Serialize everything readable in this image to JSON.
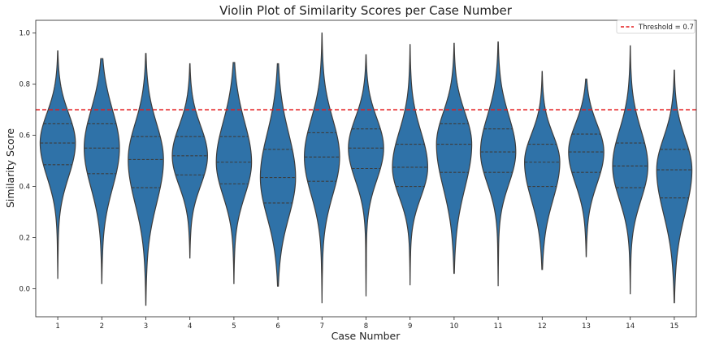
{
  "chart_data": {
    "type": "violin",
    "title": "Violin Plot of Similarity Scores per Case Number",
    "xlabel": "Case Number",
    "ylabel": "Similarity Score",
    "ylim": [
      -0.11,
      1.05
    ],
    "yticks": [
      "0.0",
      "0.2",
      "0.4",
      "0.6",
      "0.8",
      "1.0"
    ],
    "ytick_values": [
      0.0,
      0.2,
      0.4,
      0.6,
      0.8,
      1.0
    ],
    "categories": [
      "1",
      "2",
      "3",
      "4",
      "5",
      "6",
      "7",
      "8",
      "9",
      "10",
      "11",
      "12",
      "13",
      "14",
      "15"
    ],
    "grid": false,
    "violin_color": "#2f72a8",
    "edge_color": "#3d3d3d",
    "threshold": {
      "value": 0.7,
      "label": "Threshold = 0.7",
      "color": "#e41a1c",
      "style": "dashed"
    },
    "legend_position": "top-right",
    "series": [
      {
        "case": "1",
        "min": 0.04,
        "max": 0.93,
        "q1": 0.485,
        "median": 0.57,
        "q3": 0.645
      },
      {
        "case": "2",
        "min": 0.02,
        "max": 0.9,
        "q1": 0.45,
        "median": 0.55,
        "q3": 0.645
      },
      {
        "case": "3",
        "min": -0.065,
        "max": 0.92,
        "q1": 0.395,
        "median": 0.505,
        "q3": 0.595
      },
      {
        "case": "4",
        "min": 0.12,
        "max": 0.88,
        "q1": 0.445,
        "median": 0.52,
        "q3": 0.595
      },
      {
        "case": "5",
        "min": 0.02,
        "max": 0.885,
        "q1": 0.41,
        "median": 0.495,
        "q3": 0.595
      },
      {
        "case": "6",
        "min": 0.01,
        "max": 0.88,
        "q1": 0.335,
        "median": 0.435,
        "q3": 0.545
      },
      {
        "case": "7",
        "min": -0.055,
        "max": 1.0,
        "q1": 0.42,
        "median": 0.515,
        "q3": 0.61
      },
      {
        "case": "8",
        "min": -0.03,
        "max": 0.915,
        "q1": 0.47,
        "median": 0.55,
        "q3": 0.625
      },
      {
        "case": "9",
        "min": 0.015,
        "max": 0.955,
        "q1": 0.4,
        "median": 0.475,
        "q3": 0.565
      },
      {
        "case": "10",
        "min": 0.06,
        "max": 0.96,
        "q1": 0.455,
        "median": 0.565,
        "q3": 0.645
      },
      {
        "case": "11",
        "min": 0.01,
        "max": 0.965,
        "q1": 0.455,
        "median": 0.535,
        "q3": 0.625
      },
      {
        "case": "12",
        "min": 0.075,
        "max": 0.85,
        "q1": 0.4,
        "median": 0.495,
        "q3": 0.565
      },
      {
        "case": "13",
        "min": 0.125,
        "max": 0.82,
        "q1": 0.455,
        "median": 0.535,
        "q3": 0.605
      },
      {
        "case": "14",
        "min": -0.02,
        "max": 0.95,
        "q1": 0.395,
        "median": 0.48,
        "q3": 0.57
      },
      {
        "case": "15",
        "min": -0.055,
        "max": 0.855,
        "q1": 0.355,
        "median": 0.465,
        "q3": 0.545
      }
    ]
  }
}
